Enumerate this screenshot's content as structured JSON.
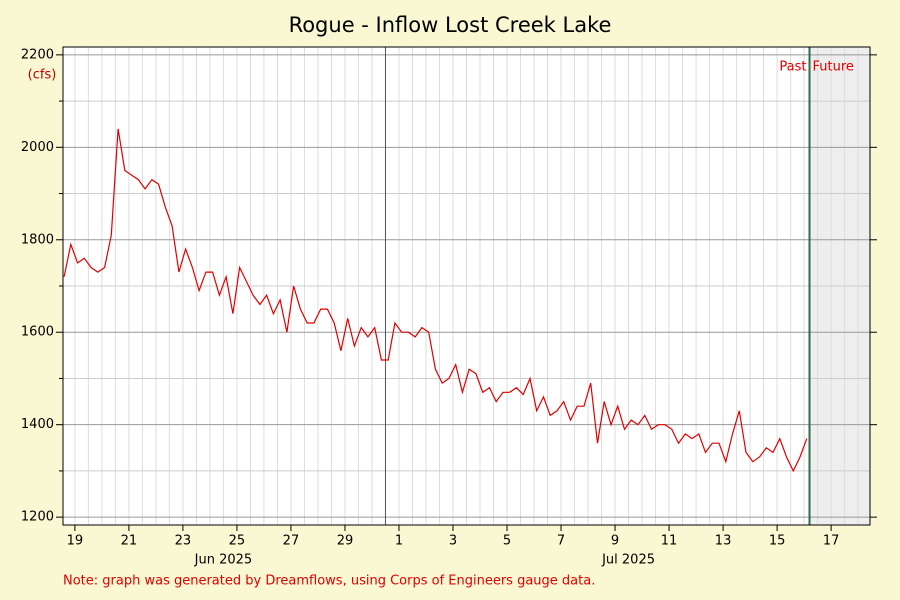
{
  "chart_data": {
    "type": "line",
    "title": "Rogue - Inflow Lost Creek Lake",
    "y_unit": "(cfs)",
    "note": "Note: graph was generated by Dreamflows, using Corps of Engineers gauge data.",
    "xlim": [
      18.56,
      48.44
    ],
    "ylim": [
      1183,
      2217
    ],
    "xticks": [
      {
        "value": 19,
        "label": "19"
      },
      {
        "value": 21,
        "label": "21"
      },
      {
        "value": 23,
        "label": "23"
      },
      {
        "value": 25,
        "label": "25"
      },
      {
        "value": 27,
        "label": "27"
      },
      {
        "value": 29,
        "label": "29"
      },
      {
        "value": 31,
        "label": "1"
      },
      {
        "value": 33,
        "label": "3"
      },
      {
        "value": 35,
        "label": "5"
      },
      {
        "value": 37,
        "label": "7"
      },
      {
        "value": 39,
        "label": "9"
      },
      {
        "value": 41,
        "label": "11"
      },
      {
        "value": 43,
        "label": "13"
      },
      {
        "value": 45,
        "label": "15"
      },
      {
        "value": 47,
        "label": "17"
      }
    ],
    "month_labels": [
      {
        "value": 24.5,
        "label": "Jun 2025"
      },
      {
        "value": 39.5,
        "label": "Jul 2025"
      }
    ],
    "month_lines": [
      30.5
    ],
    "yticks": [
      1200,
      1400,
      1600,
      1800,
      2000,
      2200
    ],
    "yminorticks": [
      1300,
      1500,
      1700,
      1900,
      2100
    ],
    "grid": true,
    "now": 46.2,
    "past_label": "Past",
    "future_label": "Future",
    "series": [
      {
        "name": "Inflow",
        "color": "#e00000",
        "x": [
          18.6,
          18.85,
          19.1,
          19.35,
          19.6,
          19.85,
          20.1,
          20.35,
          20.6,
          20.85,
          21.1,
          21.35,
          21.6,
          21.85,
          22.1,
          22.35,
          22.6,
          22.85,
          23.1,
          23.35,
          23.6,
          23.85,
          24.1,
          24.35,
          24.6,
          24.85,
          25.1,
          25.35,
          25.6,
          25.85,
          26.1,
          26.35,
          26.6,
          26.85,
          27.1,
          27.35,
          27.6,
          27.85,
          28.1,
          28.35,
          28.6,
          28.85,
          29.1,
          29.35,
          29.6,
          29.85,
          30.1,
          30.35,
          30.6,
          30.85,
          31.1,
          31.35,
          31.6,
          31.85,
          32.1,
          32.35,
          32.6,
          32.85,
          33.1,
          33.35,
          33.6,
          33.85,
          34.1,
          34.35,
          34.6,
          34.85,
          35.1,
          35.35,
          35.6,
          35.85,
          36.1,
          36.35,
          36.6,
          36.85,
          37.1,
          37.35,
          37.6,
          37.85,
          38.1,
          38.35,
          38.6,
          38.85,
          39.1,
          39.35,
          39.6,
          39.85,
          40.1,
          40.35,
          40.6,
          40.85,
          41.1,
          41.35,
          41.6,
          41.85,
          42.1,
          42.35,
          42.6,
          42.85,
          43.1,
          43.35,
          43.6,
          43.85,
          44.1,
          44.35,
          44.6,
          44.85,
          45.1,
          45.35,
          45.6,
          45.85,
          46.1
        ],
        "values": [
          1720,
          1790,
          1750,
          1760,
          1740,
          1730,
          1740,
          1810,
          2040,
          1950,
          1940,
          1930,
          1910,
          1930,
          1920,
          1870,
          1830,
          1730,
          1780,
          1740,
          1690,
          1730,
          1730,
          1680,
          1720,
          1640,
          1740,
          1710,
          1680,
          1660,
          1680,
          1640,
          1670,
          1600,
          1700,
          1650,
          1620,
          1620,
          1650,
          1650,
          1620,
          1560,
          1630,
          1570,
          1610,
          1590,
          1610,
          1540,
          1540,
          1620,
          1600,
          1600,
          1590,
          1610,
          1600,
          1520,
          1490,
          1500,
          1530,
          1470,
          1520,
          1510,
          1470,
          1480,
          1450,
          1470,
          1470,
          1480,
          1465,
          1500,
          1430,
          1460,
          1420,
          1430,
          1450,
          1410,
          1440,
          1440,
          1490,
          1360,
          1450,
          1400,
          1440,
          1390,
          1410,
          1400,
          1420,
          1390,
          1400,
          1400,
          1390,
          1360,
          1380,
          1370,
          1380,
          1340,
          1360,
          1360,
          1320,
          1380,
          1430,
          1340,
          1320,
          1330,
          1350,
          1340,
          1370,
          1330,
          1300,
          1330,
          1370
        ]
      }
    ]
  }
}
